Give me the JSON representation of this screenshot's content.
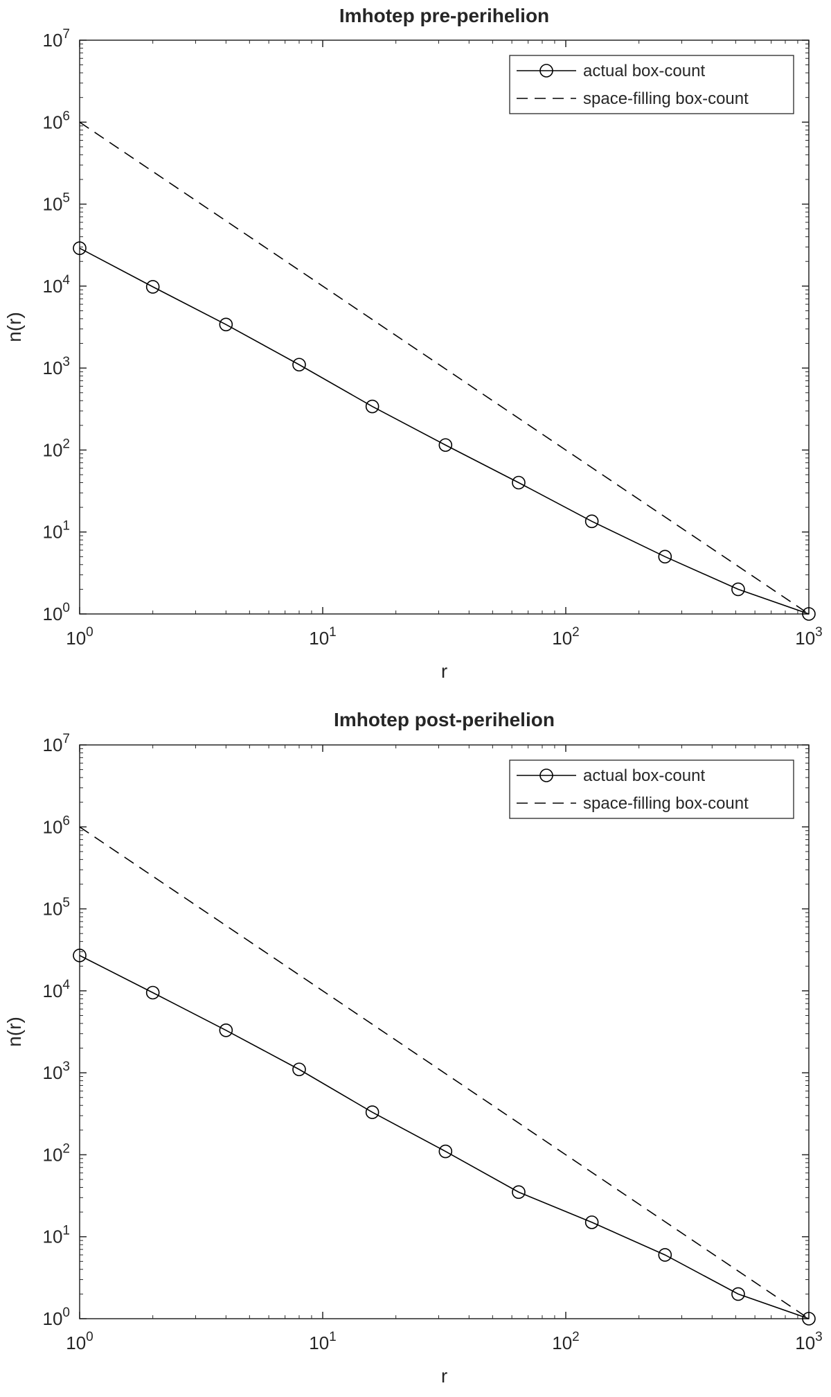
{
  "chart_data": [
    {
      "type": "line",
      "title": "Imhotep pre-perihelion",
      "xlabel": "r",
      "ylabel": "n(r)",
      "xscale": "log",
      "yscale": "log",
      "xlim": [
        1,
        1000
      ],
      "ylim": [
        1,
        10000000
      ],
      "x_ticks": [
        1,
        10,
        100,
        1000
      ],
      "y_ticks": [
        1,
        10,
        100,
        1000,
        10000,
        100000,
        1000000,
        10000000
      ],
      "x_tick_exponents": [
        "0",
        "1",
        "2",
        "3"
      ],
      "y_tick_exponents": [
        "0",
        "1",
        "2",
        "3",
        "4",
        "5",
        "6",
        "7"
      ],
      "tick_base": "10",
      "grid": false,
      "legend_position": "top-right",
      "series": [
        {
          "name": "actual box-count",
          "style": "solid-line-circle-markers",
          "color": "#000000",
          "x": [
            1,
            2,
            4,
            8,
            16,
            32,
            64,
            128,
            256,
            512,
            1000
          ],
          "y": [
            29000,
            9800,
            3400,
            1100,
            340,
            115,
            40,
            13.5,
            5,
            2,
            1
          ]
        },
        {
          "name": "space-filling box-count",
          "style": "dashed-line",
          "color": "#000000",
          "x": [
            1,
            1000
          ],
          "y": [
            1000000,
            1
          ]
        }
      ]
    },
    {
      "type": "line",
      "title": "Imhotep post-perihelion",
      "xlabel": "r",
      "ylabel": "n(r)",
      "xscale": "log",
      "yscale": "log",
      "xlim": [
        1,
        1000
      ],
      "ylim": [
        1,
        10000000
      ],
      "x_ticks": [
        1,
        10,
        100,
        1000
      ],
      "y_ticks": [
        1,
        10,
        100,
        1000,
        10000,
        100000,
        1000000,
        10000000
      ],
      "x_tick_exponents": [
        "0",
        "1",
        "2",
        "3"
      ],
      "y_tick_exponents": [
        "0",
        "1",
        "2",
        "3",
        "4",
        "5",
        "6",
        "7"
      ],
      "tick_base": "10",
      "grid": false,
      "legend_position": "top-right",
      "series": [
        {
          "name": "actual box-count",
          "style": "solid-line-circle-markers",
          "color": "#000000",
          "x": [
            1,
            2,
            4,
            8,
            16,
            32,
            64,
            128,
            256,
            512,
            1000
          ],
          "y": [
            27000,
            9500,
            3300,
            1100,
            330,
            110,
            35,
            15,
            6,
            2,
            1
          ]
        },
        {
          "name": "space-filling box-count",
          "style": "dashed-line",
          "color": "#000000",
          "x": [
            1,
            1000
          ],
          "y": [
            1000000,
            1
          ]
        }
      ]
    }
  ]
}
